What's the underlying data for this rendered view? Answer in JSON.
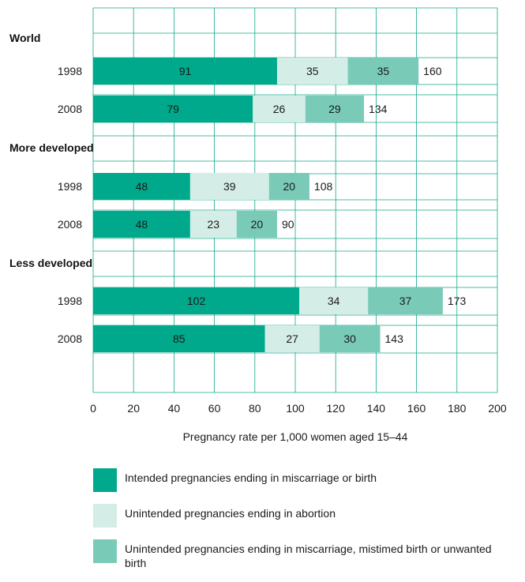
{
  "chart_data": {
    "type": "bar",
    "orientation": "horizontal",
    "stacked": true,
    "xlabel": "Pregnancy rate per 1,000 women aged 15–44",
    "xlim": [
      0,
      200
    ],
    "xticks": [
      0,
      20,
      40,
      60,
      80,
      100,
      120,
      140,
      160,
      180,
      200
    ],
    "grid": true,
    "legend_position": "bottom",
    "colors": [
      "#00a98b",
      "#d4ede7",
      "#79cbb8"
    ],
    "series_names": [
      "Intended pregnancies ending in miscarriage or birth",
      "Unintended pregnancies ending in abortion",
      "Unintended pregnancies ending in miscarriage, mistimed birth or unwanted birth"
    ],
    "groups": [
      {
        "name": "World",
        "rows": [
          {
            "year": "1998",
            "values": [
              91,
              35,
              35
            ],
            "total": 160
          },
          {
            "year": "2008",
            "values": [
              79,
              26,
              29
            ],
            "total": 134
          }
        ]
      },
      {
        "name": "More developed",
        "rows": [
          {
            "year": "1998",
            "values": [
              48,
              39,
              20
            ],
            "total": 108
          },
          {
            "year": "2008",
            "values": [
              48,
              23,
              20
            ],
            "total": 90
          }
        ]
      },
      {
        "name": "Less developed",
        "rows": [
          {
            "year": "1998",
            "values": [
              102,
              34,
              37
            ],
            "total": 173
          },
          {
            "year": "2008",
            "values": [
              85,
              27,
              30
            ],
            "total": 143
          }
        ]
      }
    ]
  }
}
